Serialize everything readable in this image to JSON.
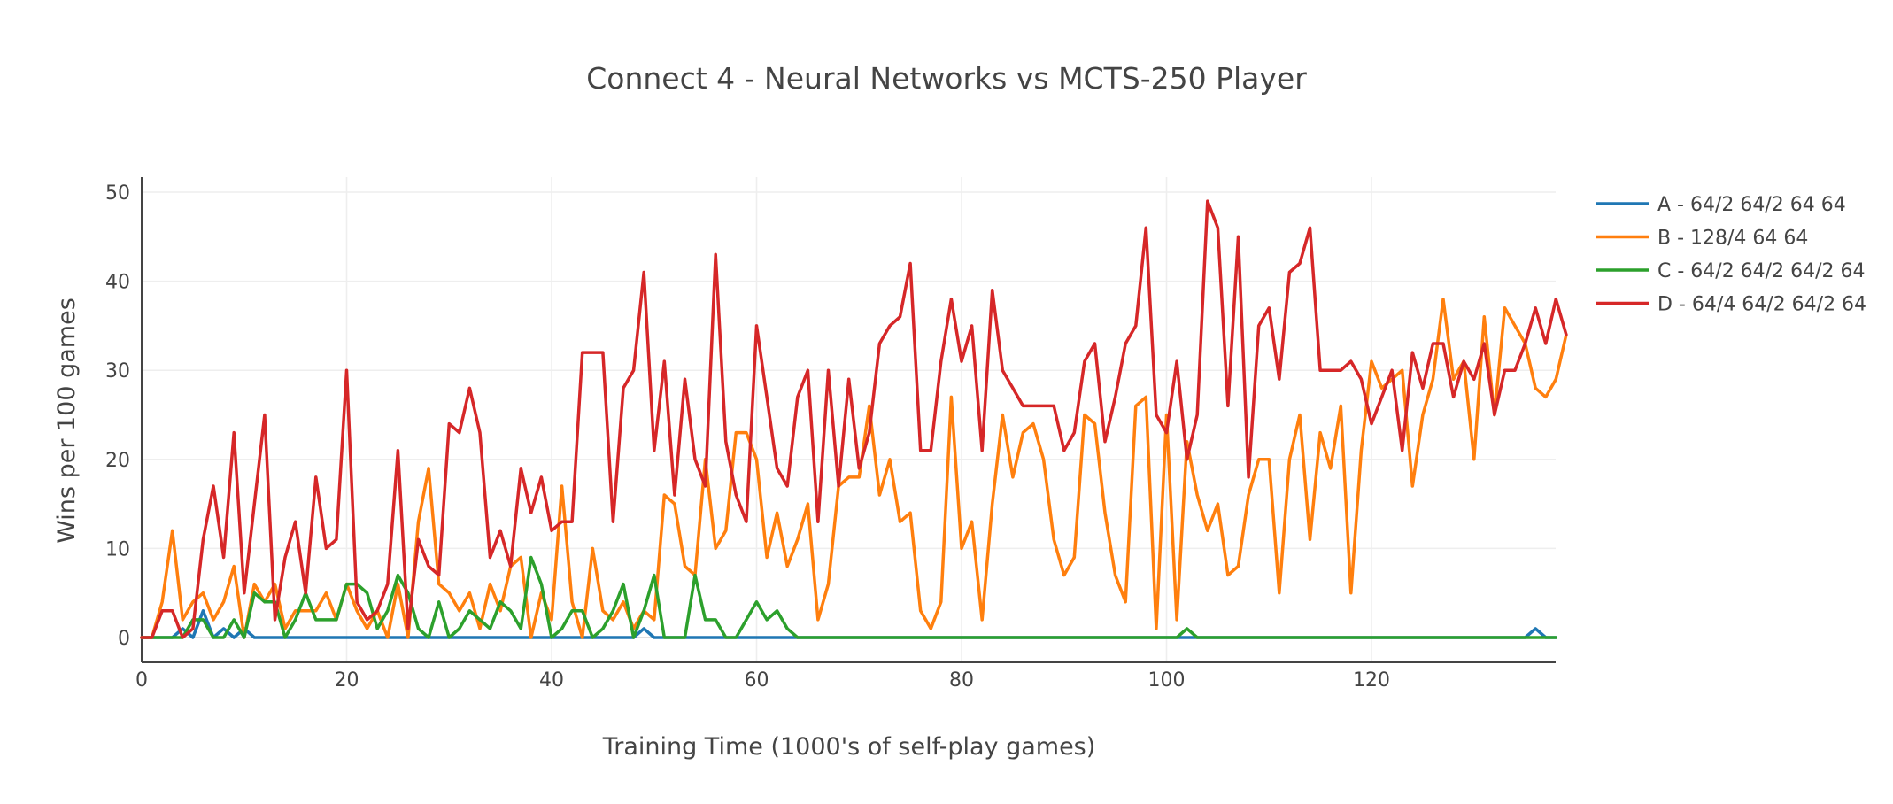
{
  "chart_data": {
    "type": "line",
    "title": "Connect 4 - Neural Networks vs MCTS-250 Player",
    "xlabel": "Training Time (1000's of self-play games)",
    "ylabel": "Wins per 100 games",
    "xlim": [
      0,
      138
    ],
    "ylim": [
      -2.5,
      52
    ],
    "x_ticks": [
      0,
      20,
      40,
      60,
      80,
      100,
      120
    ],
    "y_ticks": [
      0,
      10,
      20,
      30,
      40,
      50
    ],
    "grid": true,
    "legend_position": "right",
    "series": [
      {
        "name": "A - 64/2 64/2 64 64",
        "color": "#1f77b4",
        "values": [
          0,
          0,
          0,
          0,
          1,
          0,
          3,
          0,
          1,
          0,
          1,
          0,
          0,
          0,
          0,
          0,
          0,
          0,
          0,
          0,
          0,
          0,
          0,
          0,
          0,
          0,
          0,
          0,
          0,
          0,
          0,
          0,
          0,
          0,
          0,
          0,
          0,
          0,
          0,
          0,
          0,
          0,
          0,
          0,
          0,
          0,
          0,
          0,
          0,
          1,
          0,
          0,
          0,
          0,
          0,
          0,
          0,
          0,
          0,
          0,
          0,
          0,
          0,
          0,
          0,
          0,
          0,
          0,
          0,
          0,
          0,
          0,
          0,
          0,
          0,
          0,
          0,
          0,
          0,
          0,
          0,
          0,
          0,
          0,
          0,
          0,
          0,
          0,
          0,
          0,
          0,
          0,
          0,
          0,
          0,
          0,
          0,
          0,
          0,
          0,
          0,
          0,
          0,
          0,
          0,
          0,
          0,
          0,
          0,
          0,
          0,
          0,
          0,
          0,
          0,
          0,
          0,
          0,
          0,
          0,
          0,
          0,
          0,
          0,
          0,
          0,
          0,
          0,
          0,
          0,
          0,
          0,
          0,
          0,
          0,
          0,
          1,
          0,
          0
        ]
      },
      {
        "name": "B - 128/4 64 64",
        "color": "#ff7f0e",
        "values": [
          0,
          0,
          4,
          12,
          2,
          4,
          5,
          2,
          4,
          8,
          0,
          6,
          4,
          6,
          1,
          3,
          3,
          3,
          5,
          2,
          6,
          3,
          1,
          3,
          0,
          6,
          0,
          13,
          19,
          6,
          5,
          3,
          5,
          1,
          6,
          3,
          8,
          9,
          0,
          5,
          2,
          17,
          4,
          0,
          10,
          3,
          2,
          4,
          1,
          3,
          2,
          16,
          15,
          8,
          7,
          20,
          10,
          12,
          23,
          23,
          20,
          9,
          14,
          8,
          11,
          15,
          2,
          6,
          17,
          18,
          18,
          26,
          16,
          20,
          13,
          14,
          3,
          1,
          4,
          27,
          10,
          13,
          2,
          15,
          25,
          18,
          23,
          24,
          20,
          11,
          7,
          9,
          25,
          24,
          14,
          7,
          4,
          26,
          27,
          1,
          25,
          2,
          22,
          16,
          12,
          15,
          7,
          8,
          16,
          20,
          20,
          5,
          20,
          25,
          11,
          23,
          19,
          26,
          5,
          21,
          31,
          28,
          29,
          30,
          17,
          25,
          29,
          38,
          29,
          31,
          20,
          36,
          25,
          37,
          35,
          33,
          28,
          27,
          29,
          34
        ]
      },
      {
        "name": "C - 64/2 64/2 64/2 64",
        "color": "#2ca02c",
        "values": [
          0,
          0,
          0,
          0,
          0,
          2,
          2,
          0,
          0,
          2,
          0,
          5,
          4,
          4,
          0,
          2,
          5,
          2,
          2,
          2,
          6,
          6,
          5,
          1,
          3,
          7,
          5,
          1,
          0,
          4,
          0,
          1,
          3,
          2,
          1,
          4,
          3,
          1,
          9,
          6,
          0,
          1,
          3,
          3,
          0,
          1,
          3,
          6,
          0,
          3,
          7,
          0,
          0,
          0,
          7,
          2,
          2,
          0,
          0,
          2,
          4,
          2,
          3,
          1,
          0,
          0,
          0,
          0,
          0,
          0,
          0,
          0,
          0,
          0,
          0,
          0,
          0,
          0,
          0,
          0,
          0,
          0,
          0,
          0,
          0,
          0,
          0,
          0,
          0,
          0,
          0,
          0,
          0,
          0,
          0,
          0,
          0,
          0,
          0,
          0,
          0,
          0,
          1,
          0,
          0,
          0,
          0,
          0,
          0,
          0,
          0,
          0,
          0,
          0,
          0,
          0,
          0,
          0,
          0,
          0,
          0,
          0,
          0,
          0,
          0,
          0,
          0,
          0,
          0,
          0,
          0,
          0,
          0,
          0,
          0,
          0,
          0,
          0,
          0
        ]
      },
      {
        "name": "D - 64/4 64/2 64/2 64",
        "color": "#d62728",
        "values": [
          0,
          0,
          3,
          3,
          0,
          1,
          11,
          17,
          9,
          23,
          5,
          15,
          25,
          2,
          9,
          13,
          5,
          18,
          10,
          11,
          30,
          4,
          2,
          3,
          6,
          21,
          1,
          11,
          8,
          7,
          24,
          23,
          28,
          23,
          9,
          12,
          8,
          19,
          14,
          18,
          12,
          13,
          13,
          32,
          32,
          32,
          13,
          28,
          30,
          41,
          21,
          31,
          16,
          29,
          20,
          17,
          43,
          22,
          16,
          13,
          35,
          27,
          19,
          17,
          27,
          30,
          13,
          30,
          17,
          29,
          19,
          23,
          33,
          35,
          36,
          42,
          21,
          21,
          31,
          38,
          31,
          35,
          21,
          39,
          30,
          28,
          26,
          26,
          26,
          26,
          21,
          23,
          31,
          33,
          22,
          27,
          33,
          35,
          46,
          25,
          23,
          31,
          20,
          25,
          49,
          46,
          26,
          45,
          18,
          35,
          37,
          29,
          41,
          42,
          46,
          30,
          30,
          30,
          31,
          29,
          24,
          27,
          30,
          21,
          32,
          28,
          33,
          33,
          27,
          31,
          29,
          33,
          25,
          30,
          30,
          33,
          37,
          33,
          38,
          34
        ]
      }
    ]
  }
}
